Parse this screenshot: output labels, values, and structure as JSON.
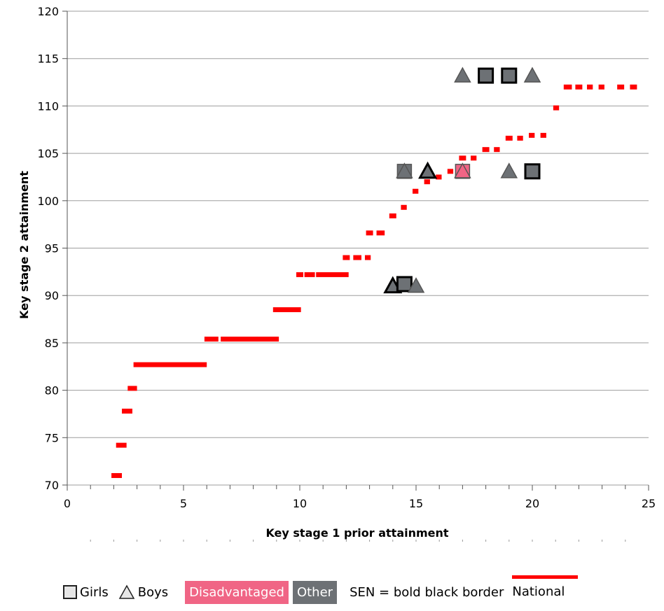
{
  "chart_data": {
    "type": "scatter",
    "xlabel": "Key stage 1 prior attainment",
    "ylabel": "Key stage 2 attainment",
    "xlim": [
      0,
      25
    ],
    "ylim": [
      70,
      120
    ],
    "x_ticks": [
      0,
      5,
      10,
      15,
      20,
      25
    ],
    "y_ticks": [
      70,
      75,
      80,
      85,
      90,
      95,
      100,
      105,
      110,
      115,
      120
    ],
    "grid": "horizontal",
    "national": {
      "name": "National",
      "color": "#ff0000",
      "segments": [
        {
          "x0": 1.9,
          "x1": 2.35,
          "y": 71.0
        },
        {
          "x0": 2.1,
          "x1": 2.55,
          "y": 74.2
        },
        {
          "x0": 2.35,
          "x1": 2.8,
          "y": 77.8
        },
        {
          "x0": 2.6,
          "x1": 3.0,
          "y": 80.2
        },
        {
          "x0": 2.85,
          "x1": 6.0,
          "y": 82.7
        },
        {
          "x0": 5.9,
          "x1": 6.5,
          "y": 85.4
        },
        {
          "x0": 6.6,
          "x1": 8.2,
          "y": 85.4
        },
        {
          "x0": 8.15,
          "x1": 9.1,
          "y": 85.4
        },
        {
          "x0": 8.85,
          "x1": 10.05,
          "y": 88.5
        },
        {
          "x0": 9.85,
          "x1": 10.15,
          "y": 92.2
        },
        {
          "x0": 10.2,
          "x1": 10.65,
          "y": 92.2
        },
        {
          "x0": 10.7,
          "x1": 12.1,
          "y": 92.2
        },
        {
          "x0": 11.85,
          "x1": 12.15,
          "y": 94.0
        },
        {
          "x0": 12.3,
          "x1": 12.65,
          "y": 94.0
        },
        {
          "x0": 12.8,
          "x1": 13.05,
          "y": 94.0
        },
        {
          "x0": 12.85,
          "x1": 13.15,
          "y": 96.6
        },
        {
          "x0": 13.3,
          "x1": 13.65,
          "y": 96.6
        },
        {
          "x0": 13.85,
          "x1": 14.15,
          "y": 98.4
        },
        {
          "x0": 14.35,
          "x1": 14.6,
          "y": 99.3
        },
        {
          "x0": 14.85,
          "x1": 15.1,
          "y": 101.0
        },
        {
          "x0": 15.35,
          "x1": 15.6,
          "y": 102.0
        },
        {
          "x0": 15.85,
          "x1": 16.1,
          "y": 102.5
        },
        {
          "x0": 16.35,
          "x1": 16.6,
          "y": 103.1
        },
        {
          "x0": 16.85,
          "x1": 17.15,
          "y": 104.5
        },
        {
          "x0": 17.35,
          "x1": 17.6,
          "y": 104.5
        },
        {
          "x0": 17.85,
          "x1": 18.15,
          "y": 105.4
        },
        {
          "x0": 18.35,
          "x1": 18.6,
          "y": 105.4
        },
        {
          "x0": 18.85,
          "x1": 19.15,
          "y": 106.6
        },
        {
          "x0": 19.35,
          "x1": 19.6,
          "y": 106.6
        },
        {
          "x0": 19.85,
          "x1": 20.1,
          "y": 106.9
        },
        {
          "x0": 20.35,
          "x1": 20.6,
          "y": 106.9
        },
        {
          "x0": 20.9,
          "x1": 21.15,
          "y": 109.8
        },
        {
          "x0": 21.35,
          "x1": 21.7,
          "y": 112.0
        },
        {
          "x0": 21.85,
          "x1": 22.15,
          "y": 112.0
        },
        {
          "x0": 22.35,
          "x1": 22.6,
          "y": 112.0
        },
        {
          "x0": 22.85,
          "x1": 23.1,
          "y": 112.0
        },
        {
          "x0": 23.65,
          "x1": 23.95,
          "y": 112.0
        },
        {
          "x0": 24.2,
          "x1": 24.5,
          "y": 112.0
        }
      ]
    },
    "pupils": [
      {
        "x": 17.0,
        "y": 113.2,
        "gender": "boy",
        "group": "other",
        "sen": false
      },
      {
        "x": 18.0,
        "y": 113.2,
        "gender": "girl",
        "group": "other",
        "sen": true
      },
      {
        "x": 19.0,
        "y": 113.2,
        "gender": "girl",
        "group": "other",
        "sen": true
      },
      {
        "x": 20.0,
        "y": 113.2,
        "gender": "boy",
        "group": "other",
        "sen": false
      },
      {
        "x": 14.5,
        "y": 103.1,
        "gender": "girl",
        "group": "other",
        "sen": false
      },
      {
        "x": 14.5,
        "y": 103.1,
        "gender": "boy",
        "group": "other",
        "sen": false
      },
      {
        "x": 15.5,
        "y": 103.1,
        "gender": "boy",
        "group": "other",
        "sen": true
      },
      {
        "x": 17.0,
        "y": 103.1,
        "gender": "girl",
        "group": "disadvantaged",
        "sen": false
      },
      {
        "x": 17.0,
        "y": 103.1,
        "gender": "boy",
        "group": "disadvantaged",
        "sen": false
      },
      {
        "x": 19.0,
        "y": 103.1,
        "gender": "boy",
        "group": "other",
        "sen": false
      },
      {
        "x": 20.0,
        "y": 103.1,
        "gender": "girl",
        "group": "other",
        "sen": true
      },
      {
        "x": 14.0,
        "y": 91.0,
        "gender": "boy",
        "group": "other",
        "sen": true
      },
      {
        "x": 14.5,
        "y": 91.2,
        "gender": "girl",
        "group": "other",
        "sen": true
      },
      {
        "x": 15.0,
        "y": 91.0,
        "gender": "boy",
        "group": "other",
        "sen": false
      }
    ],
    "colors": {
      "disadvantaged": "#f06585",
      "other": "#6d7175",
      "border": "#555555",
      "sen_border": "#000000",
      "national": "#ff0000",
      "grid": "#9e9e9e"
    },
    "legend": {
      "girls": "Girls",
      "boys": "Boys",
      "disadvantaged": "Disadvantaged",
      "other": "Other",
      "sen_note": "SEN = bold black border",
      "national": "National"
    }
  }
}
